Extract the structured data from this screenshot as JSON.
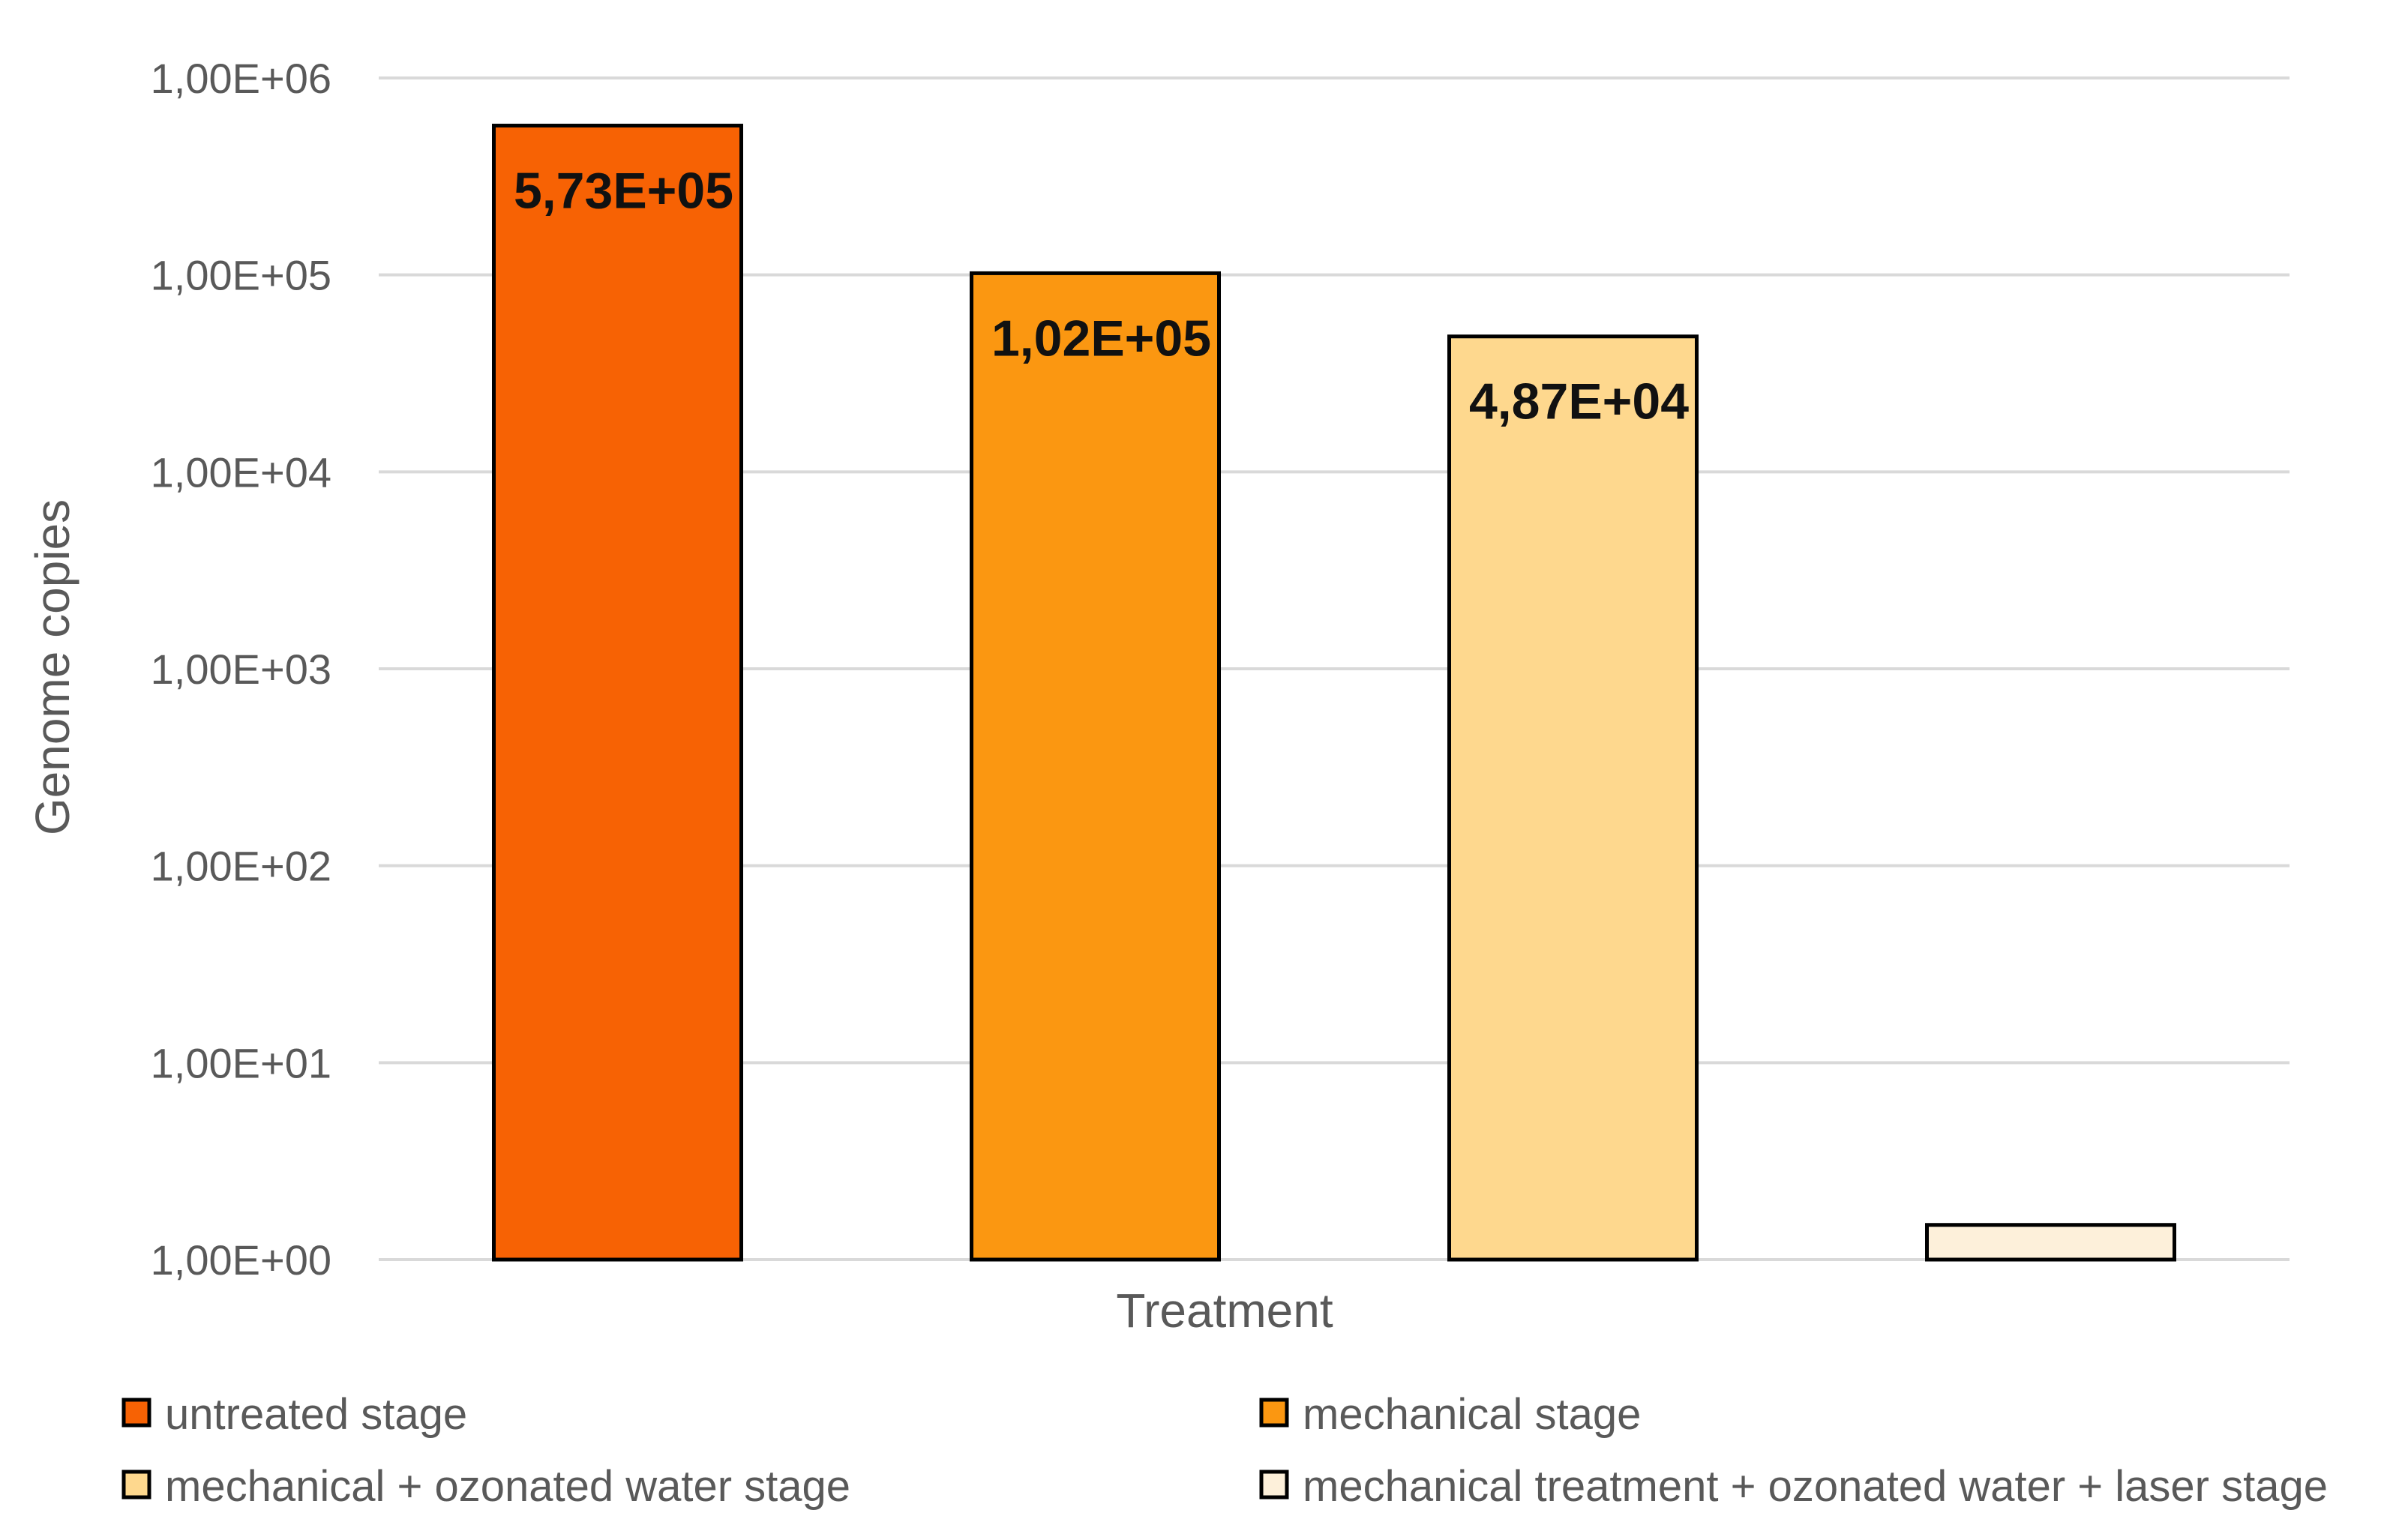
{
  "chart_data": {
    "type": "bar",
    "title": "",
    "xlabel": "Treatment",
    "ylabel": "Genome copies",
    "y_scale": "log",
    "ylim": [
      1,
      1000000
    ],
    "y_ticks": [
      1,
      10,
      100,
      1000,
      10000,
      100000,
      1000000
    ],
    "y_tick_labels": [
      "1,00E+00",
      "1,00E+01",
      "1,00E+02",
      "1,00E+03",
      "1,00E+04",
      "1,00E+05",
      "1,00E+06"
    ],
    "grid": true,
    "legend_position": "bottom",
    "categories": [
      "untreated stage",
      "mechanical stage",
      "mechanical + ozonated water stage",
      "mechanical treatment + ozonated water + laser stage"
    ],
    "values": [
      573000,
      102000,
      48700,
      1.5
    ],
    "data_labels": [
      "5,73E+05",
      "1,02E+05",
      "4,87E+04",
      ""
    ],
    "colors": [
      "#F76204",
      "#FB9711",
      "#FED88E",
      "#FDF0DA"
    ]
  }
}
